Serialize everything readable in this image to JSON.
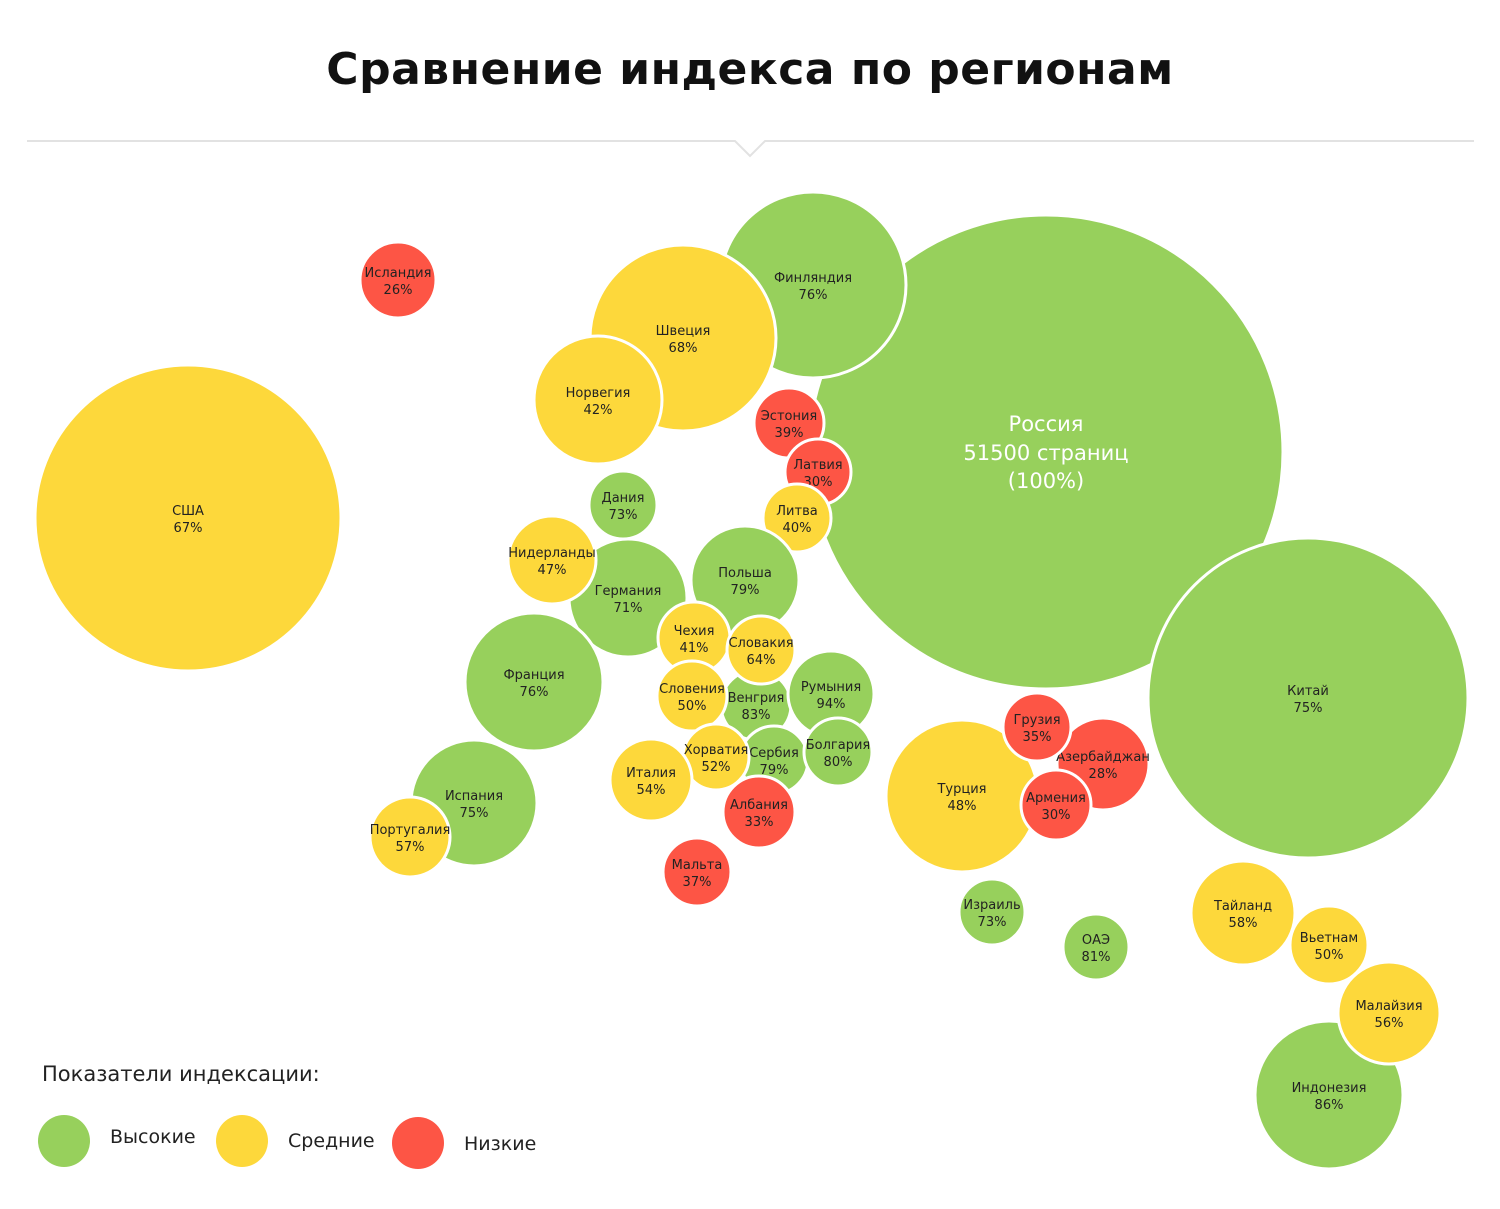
{
  "title": "Сравнение индекса по регионам",
  "colors": {
    "high": "#97d05c",
    "mid": "#fdd83b",
    "low": "#fd5545"
  },
  "legend": {
    "title": "Показатели индексации:",
    "items": [
      {
        "key": "high",
        "label": "Высокие"
      },
      {
        "key": "mid",
        "label": "Средние"
      },
      {
        "key": "low",
        "label": "Низкие"
      }
    ]
  },
  "chart_data": {
    "type": "bubble",
    "title": "Сравнение индекса по регионам",
    "highlight": {
      "name": "Россия",
      "line2": "51500 страниц",
      "line3": "(100%)",
      "pages": 51500,
      "percent": 100,
      "level": "high"
    },
    "bubbles": [
      {
        "name": "Финляндия",
        "percent": 76,
        "level": "high"
      },
      {
        "name": "Швеция",
        "percent": 68,
        "level": "mid"
      },
      {
        "name": "Норвегия",
        "percent": 42,
        "level": "mid"
      },
      {
        "name": "Исландия",
        "percent": 26,
        "level": "low"
      },
      {
        "name": "США",
        "percent": 67,
        "level": "mid"
      },
      {
        "name": "Китай",
        "percent": 75,
        "level": "high"
      },
      {
        "name": "Эстония",
        "percent": 39,
        "level": "low"
      },
      {
        "name": "Латвия",
        "percent": 30,
        "level": "low"
      },
      {
        "name": "Литва",
        "percent": 40,
        "level": "mid"
      },
      {
        "name": "Дания",
        "percent": 73,
        "level": "high"
      },
      {
        "name": "Германия",
        "percent": 71,
        "level": "high"
      },
      {
        "name": "Нидерланды",
        "percent": 47,
        "level": "mid"
      },
      {
        "name": "Польша",
        "percent": 79,
        "level": "high"
      },
      {
        "name": "Франция",
        "percent": 76,
        "level": "high"
      },
      {
        "name": "Венгрия",
        "percent": 83,
        "level": "high"
      },
      {
        "name": "Сербия",
        "percent": 79,
        "level": "high"
      },
      {
        "name": "Румыния",
        "percent": 94,
        "level": "high"
      },
      {
        "name": "Болгария",
        "percent": 80,
        "level": "high"
      },
      {
        "name": "Чехия",
        "percent": 41,
        "level": "mid"
      },
      {
        "name": "Словакия",
        "percent": 64,
        "level": "mid"
      },
      {
        "name": "Словения",
        "percent": 50,
        "level": "mid"
      },
      {
        "name": "Хорватия",
        "percent": 52,
        "level": "mid"
      },
      {
        "name": "Албания",
        "percent": 33,
        "level": "low"
      },
      {
        "name": "Италия",
        "percent": 54,
        "level": "mid"
      },
      {
        "name": "Испания",
        "percent": 75,
        "level": "high"
      },
      {
        "name": "Португалия",
        "percent": 57,
        "level": "mid"
      },
      {
        "name": "Мальта",
        "percent": 37,
        "level": "low"
      },
      {
        "name": "Турция",
        "percent": 48,
        "level": "mid"
      },
      {
        "name": "Азербайджан",
        "percent": 28,
        "level": "low"
      },
      {
        "name": "Грузия",
        "percent": 35,
        "level": "low"
      },
      {
        "name": "Армения",
        "percent": 30,
        "level": "low"
      },
      {
        "name": "Израиль",
        "percent": 73,
        "level": "high"
      },
      {
        "name": "ОАЭ",
        "percent": 81,
        "level": "high"
      },
      {
        "name": "Индонезия",
        "percent": 86,
        "level": "high"
      },
      {
        "name": "Тайланд",
        "percent": 58,
        "level": "mid"
      },
      {
        "name": "Вьетнам",
        "percent": 50,
        "level": "mid"
      },
      {
        "name": "Малайзия",
        "percent": 56,
        "level": "mid"
      }
    ]
  }
}
